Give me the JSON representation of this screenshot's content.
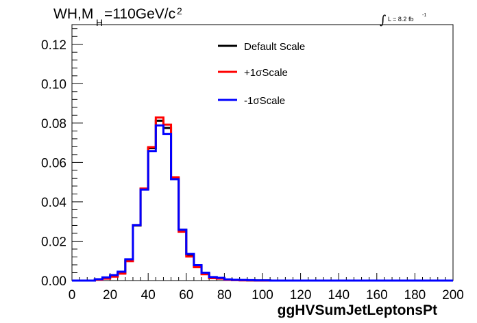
{
  "title": {
    "prefix": "WH,M",
    "subscript": "H",
    "suffix": "=110GeV/c",
    "superscript": "2"
  },
  "luminosity": {
    "symbol": "∫",
    "text": "L = 8.2 fb",
    "superscript": "-1"
  },
  "chart_data": {
    "type": "line",
    "style": "step-histogram",
    "xlabel": "ggHVSumJetLeptonsPt",
    "ylabel": "",
    "xlim": [
      0,
      200
    ],
    "ylim": [
      0,
      0.13
    ],
    "x_ticks": [
      0,
      20,
      40,
      60,
      80,
      100,
      120,
      140,
      160,
      180,
      200
    ],
    "x_tick_labels": [
      "0",
      "20",
      "40",
      "60",
      "80",
      "100",
      "120",
      "140",
      "160",
      "180",
      "200"
    ],
    "y_ticks": [
      0,
      0.02,
      0.04,
      0.06,
      0.08,
      0.1,
      0.12
    ],
    "y_tick_labels": [
      "0.00",
      "0.02",
      "0.04",
      "0.06",
      "0.08",
      "0.10",
      "0.12"
    ],
    "bin_width": 4,
    "bin_edges_start": 0,
    "grid": false,
    "legend_position": "top-center",
    "series": [
      {
        "name": "Default Scale",
        "color": "#000000",
        "values": [
          0,
          0,
          0,
          0.0005,
          0.0012,
          0.0022,
          0.0038,
          0.0102,
          0.028,
          0.0465,
          0.0672,
          0.0812,
          0.0775,
          0.0522,
          0.0258,
          0.0132,
          0.0075,
          0.0035,
          0.0015,
          0.0012,
          0.0005,
          0.0003,
          0.0002,
          0.0001,
          0.0001,
          0.0001,
          0,
          0,
          0,
          0,
          0,
          0,
          0,
          0,
          0,
          0,
          0,
          0,
          0,
          0,
          0,
          0,
          0,
          0,
          0,
          0,
          0,
          0,
          0,
          0
        ]
      },
      {
        "name": "+1σScale",
        "color": "#ff0000",
        "values": [
          0,
          0,
          0,
          0.0004,
          0.001,
          0.002,
          0.0035,
          0.0098,
          0.0282,
          0.0468,
          0.0678,
          0.0828,
          0.0792,
          0.0525,
          0.0248,
          0.0122,
          0.0068,
          0.0032,
          0.0012,
          0.001,
          0.0004,
          0.0002,
          0.0001,
          0.0001,
          0,
          0,
          0,
          0,
          0,
          0,
          0,
          0,
          0,
          0,
          0,
          0,
          0,
          0,
          0,
          0,
          0,
          0,
          0,
          0,
          0,
          0,
          0,
          0,
          0,
          0
        ]
      },
      {
        "name": "-1σScale",
        "color": "#0000ff",
        "values": [
          0,
          0,
          0,
          0.0007,
          0.0016,
          0.0028,
          0.0045,
          0.0108,
          0.0282,
          0.0462,
          0.0658,
          0.0788,
          0.0745,
          0.0515,
          0.0258,
          0.0135,
          0.0078,
          0.004,
          0.0018,
          0.0014,
          0.0006,
          0.0004,
          0.0003,
          0.0002,
          0.0001,
          0.0001,
          0,
          0,
          0,
          0,
          0,
          0,
          0,
          0,
          0,
          0,
          0,
          0,
          0,
          0,
          0,
          0,
          0,
          0,
          0,
          0,
          0,
          0,
          0,
          0
        ]
      }
    ]
  }
}
